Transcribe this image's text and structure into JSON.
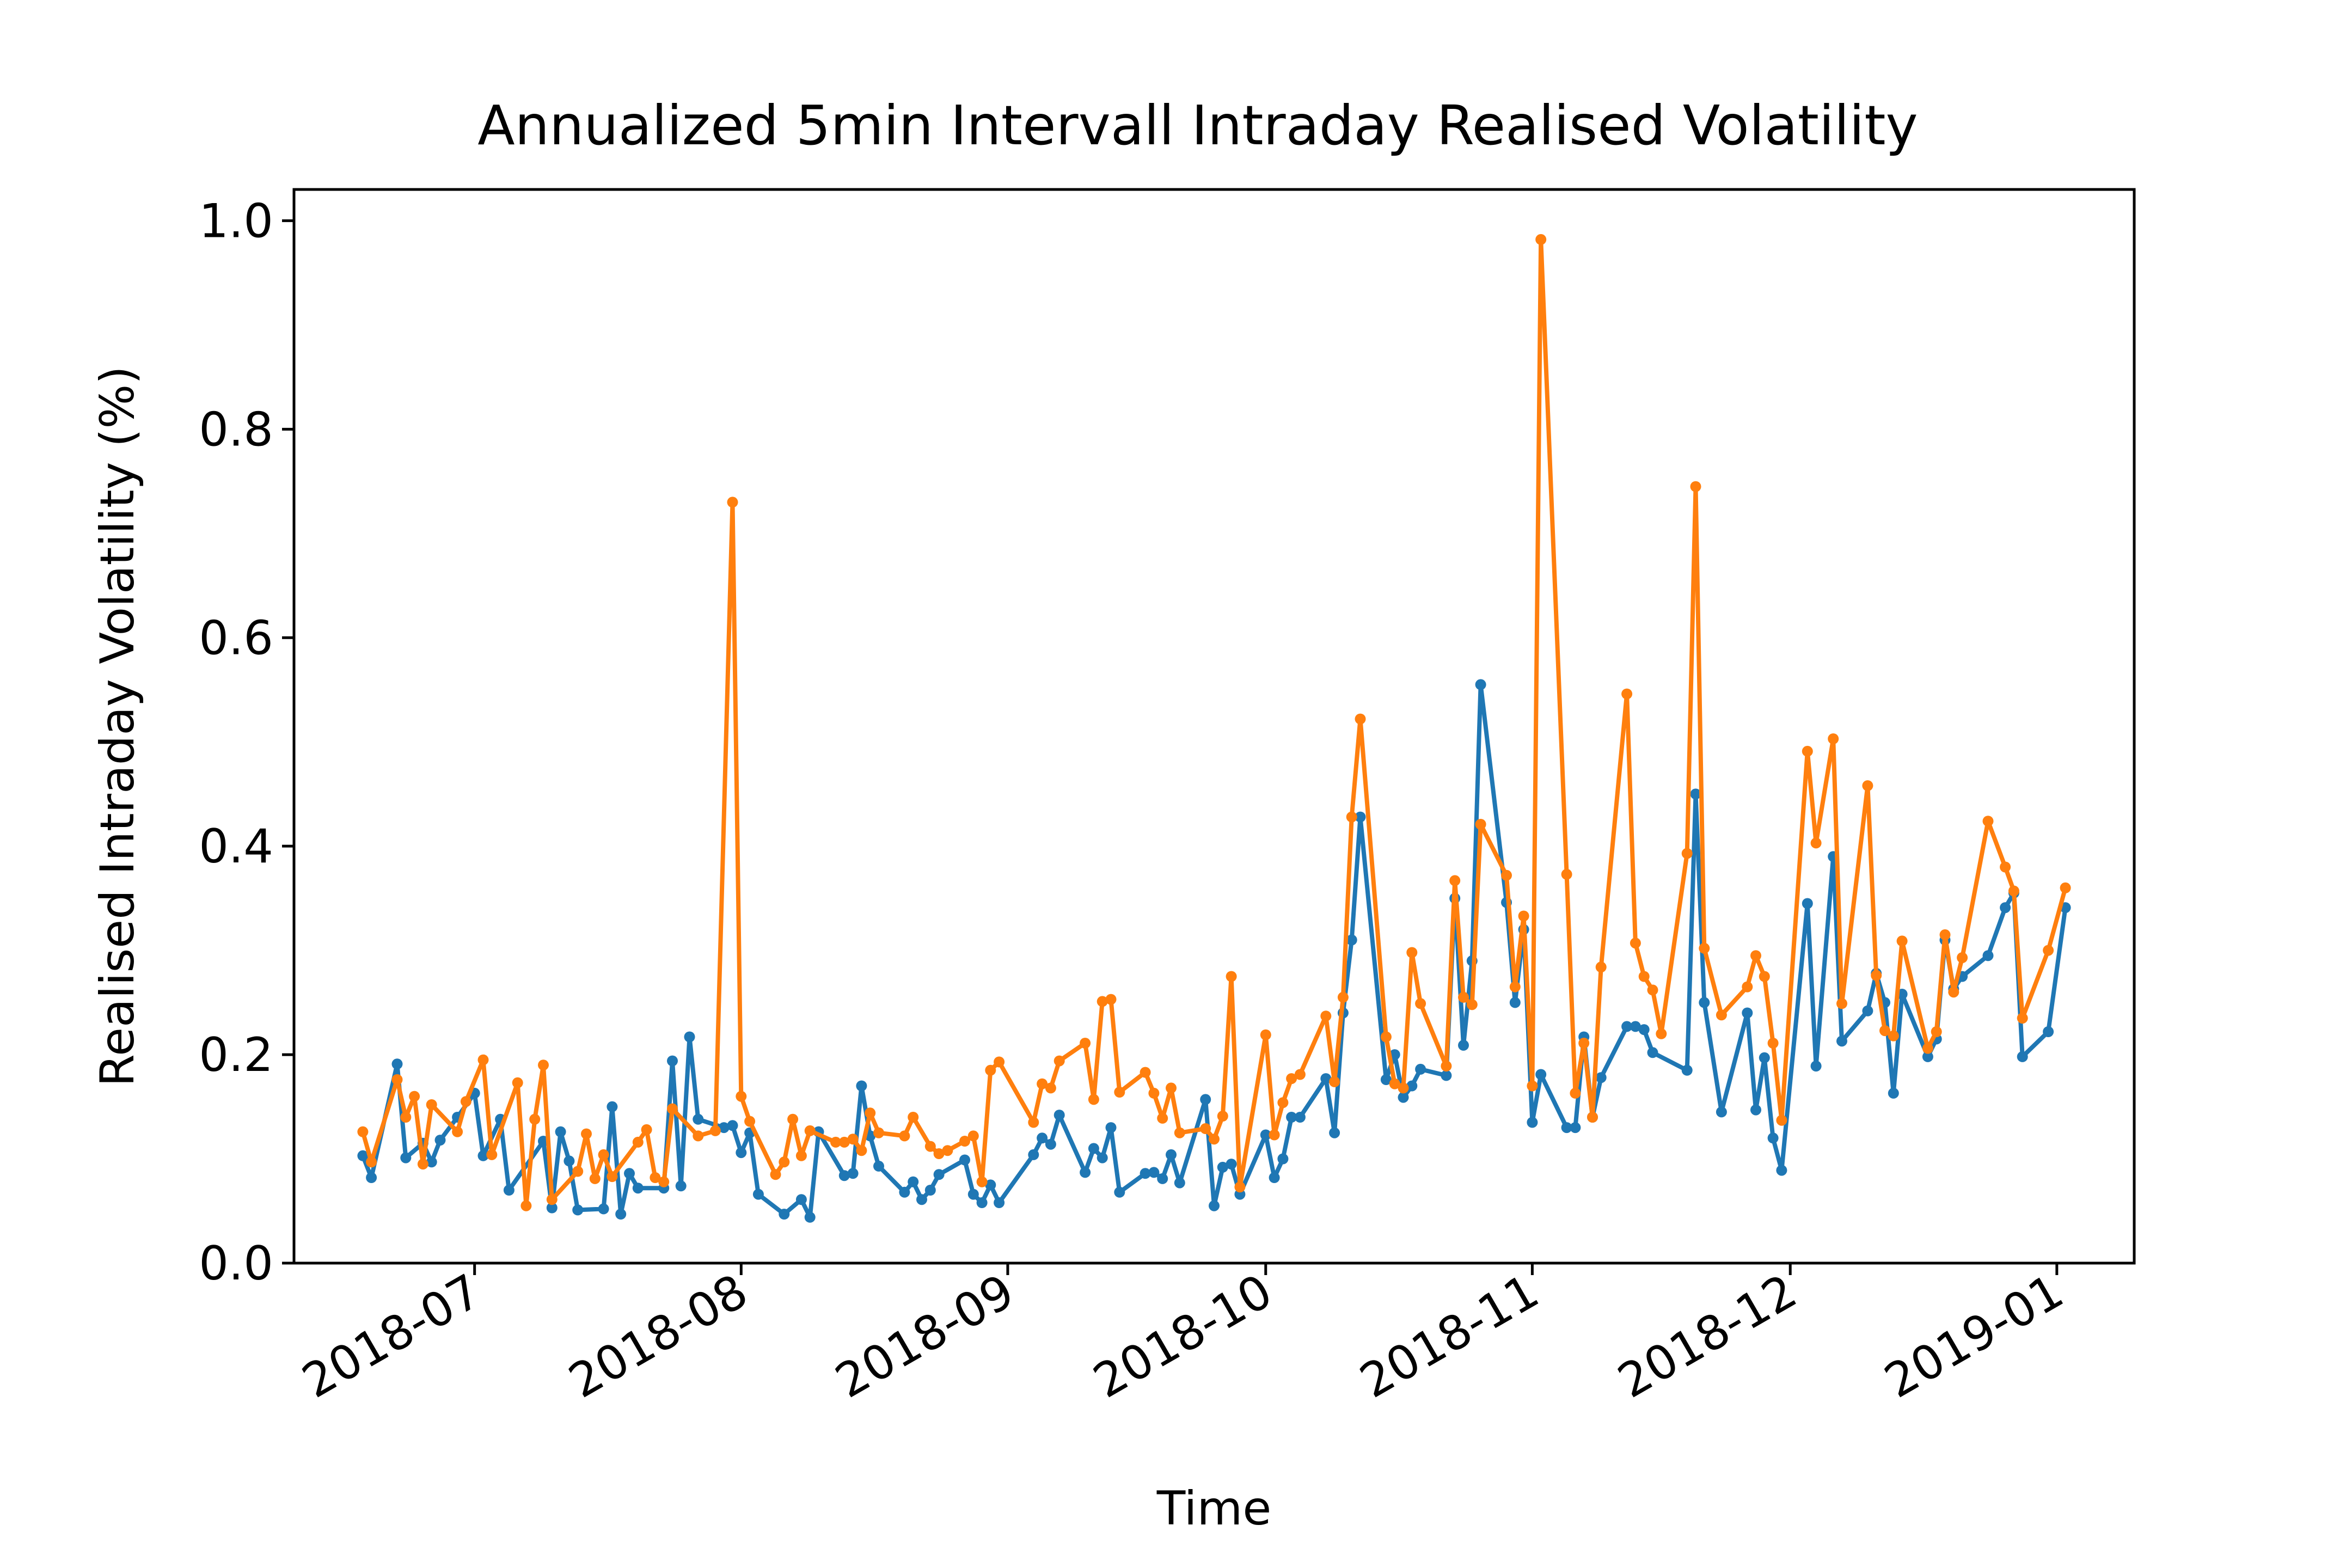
{
  "chart_data": {
    "type": "line",
    "title": "Annualized 5min Intervall Intraday Realised Volatility",
    "xlabel": "Time",
    "ylabel": "Realised Intraday Volatility (%)",
    "ylim": [
      0,
      1.03
    ],
    "xlim": [
      "2018-06-10",
      "2019-01-10"
    ],
    "y_ticks": [
      0.0,
      0.2,
      0.4,
      0.6,
      0.8,
      1.0
    ],
    "y_tick_labels": [
      "0.0",
      "0.2",
      "0.4",
      "0.6",
      "0.8",
      "1.0"
    ],
    "x_ticks": [
      "2018-07-01",
      "2018-08-01",
      "2018-09-01",
      "2018-10-01",
      "2018-11-01",
      "2018-12-01",
      "2019-01-01"
    ],
    "x_tick_labels": [
      "2018-07",
      "2018-08",
      "2018-09",
      "2018-10",
      "2018-11",
      "2018-12",
      "2019-01"
    ],
    "grid": false,
    "series": [
      {
        "color": "#1f77b4",
        "points": [
          [
            "2018-06-18",
            0.103
          ],
          [
            "2018-06-19",
            0.082
          ],
          [
            "2018-06-22",
            0.191
          ],
          [
            "2018-06-23",
            0.101
          ],
          [
            "2018-06-25",
            0.115
          ],
          [
            "2018-06-26",
            0.097
          ],
          [
            "2018-06-27",
            0.118
          ],
          [
            "2018-06-29",
            0.14
          ],
          [
            "2018-07-01",
            0.163
          ],
          [
            "2018-07-02",
            0.103
          ],
          [
            "2018-07-04",
            0.138
          ],
          [
            "2018-07-05",
            0.07
          ],
          [
            "2018-07-09",
            0.117
          ],
          [
            "2018-07-10",
            0.053
          ],
          [
            "2018-07-11",
            0.126
          ],
          [
            "2018-07-12",
            0.098
          ],
          [
            "2018-07-13",
            0.051
          ],
          [
            "2018-07-16",
            0.052
          ],
          [
            "2018-07-17",
            0.15
          ],
          [
            "2018-07-18",
            0.047
          ],
          [
            "2018-07-19",
            0.086
          ],
          [
            "2018-07-20",
            0.072
          ],
          [
            "2018-07-23",
            0.072
          ],
          [
            "2018-07-24",
            0.194
          ],
          [
            "2018-07-25",
            0.074
          ],
          [
            "2018-07-26",
            0.217
          ],
          [
            "2018-07-27",
            0.138
          ],
          [
            "2018-07-30",
            0.13
          ],
          [
            "2018-07-31",
            0.132
          ],
          [
            "2018-08-01",
            0.106
          ],
          [
            "2018-08-02",
            0.125
          ],
          [
            "2018-08-03",
            0.066
          ],
          [
            "2018-08-06",
            0.047
          ],
          [
            "2018-08-08",
            0.061
          ],
          [
            "2018-08-09",
            0.044
          ],
          [
            "2018-08-10",
            0.126
          ],
          [
            "2018-08-13",
            0.084
          ],
          [
            "2018-08-14",
            0.086
          ],
          [
            "2018-08-15",
            0.17
          ],
          [
            "2018-08-16",
            0.122
          ],
          [
            "2018-08-17",
            0.093
          ],
          [
            "2018-08-20",
            0.068
          ],
          [
            "2018-08-21",
            0.078
          ],
          [
            "2018-08-22",
            0.061
          ],
          [
            "2018-08-23",
            0.07
          ],
          [
            "2018-08-24",
            0.085
          ],
          [
            "2018-08-27",
            0.099
          ],
          [
            "2018-08-28",
            0.066
          ],
          [
            "2018-08-29",
            0.058
          ],
          [
            "2018-08-30",
            0.075
          ],
          [
            "2018-08-31",
            0.058
          ],
          [
            "2018-09-04",
            0.104
          ],
          [
            "2018-09-05",
            0.12
          ],
          [
            "2018-09-06",
            0.114
          ],
          [
            "2018-09-07",
            0.142
          ],
          [
            "2018-09-10",
            0.087
          ],
          [
            "2018-09-11",
            0.11
          ],
          [
            "2018-09-12",
            0.101
          ],
          [
            "2018-09-13",
            0.13
          ],
          [
            "2018-09-14",
            0.068
          ],
          [
            "2018-09-17",
            0.086
          ],
          [
            "2018-09-18",
            0.087
          ],
          [
            "2018-09-19",
            0.081
          ],
          [
            "2018-09-20",
            0.104
          ],
          [
            "2018-09-21",
            0.077
          ],
          [
            "2018-09-24",
            0.157
          ],
          [
            "2018-09-25",
            0.055
          ],
          [
            "2018-09-26",
            0.092
          ],
          [
            "2018-09-27",
            0.095
          ],
          [
            "2018-09-28",
            0.066
          ],
          [
            "2018-10-01",
            0.123
          ],
          [
            "2018-10-02",
            0.082
          ],
          [
            "2018-10-03",
            0.1
          ],
          [
            "2018-10-04",
            0.14
          ],
          [
            "2018-10-05",
            0.14
          ],
          [
            "2018-10-08",
            0.177
          ],
          [
            "2018-10-09",
            0.125
          ],
          [
            "2018-10-10",
            0.24
          ],
          [
            "2018-10-11",
            0.31
          ],
          [
            "2018-10-12",
            0.428
          ],
          [
            "2018-10-15",
            0.176
          ],
          [
            "2018-10-16",
            0.2
          ],
          [
            "2018-10-17",
            0.159
          ],
          [
            "2018-10-18",
            0.17
          ],
          [
            "2018-10-19",
            0.186
          ],
          [
            "2018-10-22",
            0.18
          ],
          [
            "2018-10-23",
            0.35
          ],
          [
            "2018-10-24",
            0.209
          ],
          [
            "2018-10-25",
            0.29
          ],
          [
            "2018-10-26",
            0.555
          ],
          [
            "2018-10-29",
            0.346
          ],
          [
            "2018-10-30",
            0.25
          ],
          [
            "2018-10-31",
            0.32
          ],
          [
            "2018-11-01",
            0.135
          ],
          [
            "2018-11-02",
            0.181
          ],
          [
            "2018-11-05",
            0.13
          ],
          [
            "2018-11-06",
            0.13
          ],
          [
            "2018-11-07",
            0.217
          ],
          [
            "2018-11-08",
            0.14
          ],
          [
            "2018-11-09",
            0.178
          ],
          [
            "2018-11-12",
            0.227
          ],
          [
            "2018-11-13",
            0.227
          ],
          [
            "2018-11-14",
            0.224
          ],
          [
            "2018-11-15",
            0.202
          ],
          [
            "2018-11-19",
            0.185
          ],
          [
            "2018-11-20",
            0.45
          ],
          [
            "2018-11-21",
            0.25
          ],
          [
            "2018-11-23",
            0.145
          ],
          [
            "2018-11-26",
            0.24
          ],
          [
            "2018-11-27",
            0.147
          ],
          [
            "2018-11-28",
            0.197
          ],
          [
            "2018-11-29",
            0.12
          ],
          [
            "2018-11-30",
            0.089
          ],
          [
            "2018-12-03",
            0.345
          ],
          [
            "2018-12-04",
            0.189
          ],
          [
            "2018-12-06",
            0.39
          ],
          [
            "2018-12-07",
            0.213
          ],
          [
            "2018-12-10",
            0.242
          ],
          [
            "2018-12-11",
            0.278
          ],
          [
            "2018-12-12",
            0.25
          ],
          [
            "2018-12-13",
            0.163
          ],
          [
            "2018-12-14",
            0.258
          ],
          [
            "2018-12-17",
            0.198
          ],
          [
            "2018-12-18",
            0.215
          ],
          [
            "2018-12-19",
            0.31
          ],
          [
            "2018-12-20",
            0.263
          ],
          [
            "2018-12-21",
            0.275
          ],
          [
            "2018-12-24",
            0.295
          ],
          [
            "2018-12-26",
            0.341
          ],
          [
            "2018-12-27",
            0.355
          ],
          [
            "2018-12-28",
            0.198
          ],
          [
            "2018-12-31",
            0.222
          ],
          [
            "2019-01-02",
            0.341
          ]
        ]
      },
      {
        "color": "#ff7f0e",
        "points": [
          [
            "2018-06-18",
            0.126
          ],
          [
            "2018-06-19",
            0.097
          ],
          [
            "2018-06-22",
            0.176
          ],
          [
            "2018-06-23",
            0.14
          ],
          [
            "2018-06-24",
            0.16
          ],
          [
            "2018-06-25",
            0.095
          ],
          [
            "2018-06-26",
            0.152
          ],
          [
            "2018-06-29",
            0.126
          ],
          [
            "2018-06-30",
            0.155
          ],
          [
            "2018-07-02",
            0.195
          ],
          [
            "2018-07-03",
            0.104
          ],
          [
            "2018-07-06",
            0.173
          ],
          [
            "2018-07-07",
            0.055
          ],
          [
            "2018-07-08",
            0.138
          ],
          [
            "2018-07-09",
            0.19
          ],
          [
            "2018-07-10",
            0.061
          ],
          [
            "2018-07-13",
            0.088
          ],
          [
            "2018-07-14",
            0.124
          ],
          [
            "2018-07-15",
            0.081
          ],
          [
            "2018-07-16",
            0.104
          ],
          [
            "2018-07-17",
            0.083
          ],
          [
            "2018-07-20",
            0.116
          ],
          [
            "2018-07-21",
            0.128
          ],
          [
            "2018-07-22",
            0.082
          ],
          [
            "2018-07-23",
            0.078
          ],
          [
            "2018-07-24",
            0.148
          ],
          [
            "2018-07-27",
            0.122
          ],
          [
            "2018-07-29",
            0.127
          ],
          [
            "2018-07-31",
            0.73
          ],
          [
            "2018-08-01",
            0.16
          ],
          [
            "2018-08-02",
            0.136
          ],
          [
            "2018-08-05",
            0.085
          ],
          [
            "2018-08-06",
            0.097
          ],
          [
            "2018-08-07",
            0.138
          ],
          [
            "2018-08-08",
            0.103
          ],
          [
            "2018-08-09",
            0.127
          ],
          [
            "2018-08-12",
            0.116
          ],
          [
            "2018-08-13",
            0.116
          ],
          [
            "2018-08-14",
            0.119
          ],
          [
            "2018-08-15",
            0.108
          ],
          [
            "2018-08-16",
            0.144
          ],
          [
            "2018-08-17",
            0.125
          ],
          [
            "2018-08-20",
            0.122
          ],
          [
            "2018-08-21",
            0.14
          ],
          [
            "2018-08-23",
            0.112
          ],
          [
            "2018-08-24",
            0.105
          ],
          [
            "2018-08-25",
            0.108
          ],
          [
            "2018-08-27",
            0.117
          ],
          [
            "2018-08-28",
            0.122
          ],
          [
            "2018-08-29",
            0.078
          ],
          [
            "2018-08-30",
            0.185
          ],
          [
            "2018-08-31",
            0.193
          ],
          [
            "2018-09-04",
            0.135
          ],
          [
            "2018-09-05",
            0.172
          ],
          [
            "2018-09-06",
            0.168
          ],
          [
            "2018-09-07",
            0.194
          ],
          [
            "2018-09-10",
            0.211
          ],
          [
            "2018-09-11",
            0.157
          ],
          [
            "2018-09-12",
            0.251
          ],
          [
            "2018-09-13",
            0.253
          ],
          [
            "2018-09-14",
            0.164
          ],
          [
            "2018-09-17",
            0.183
          ],
          [
            "2018-09-18",
            0.163
          ],
          [
            "2018-09-19",
            0.139
          ],
          [
            "2018-09-20",
            0.168
          ],
          [
            "2018-09-21",
            0.125
          ],
          [
            "2018-09-24",
            0.129
          ],
          [
            "2018-09-25",
            0.119
          ],
          [
            "2018-09-26",
            0.141
          ],
          [
            "2018-09-27",
            0.275
          ],
          [
            "2018-09-28",
            0.073
          ],
          [
            "2018-10-01",
            0.219
          ],
          [
            "2018-10-02",
            0.123
          ],
          [
            "2018-10-03",
            0.154
          ],
          [
            "2018-10-04",
            0.177
          ],
          [
            "2018-10-05",
            0.181
          ],
          [
            "2018-10-08",
            0.237
          ],
          [
            "2018-10-09",
            0.174
          ],
          [
            "2018-10-10",
            0.255
          ],
          [
            "2018-10-11",
            0.428
          ],
          [
            "2018-10-12",
            0.522
          ],
          [
            "2018-10-15",
            0.217
          ],
          [
            "2018-10-16",
            0.172
          ],
          [
            "2018-10-17",
            0.168
          ],
          [
            "2018-10-18",
            0.298
          ],
          [
            "2018-10-19",
            0.249
          ],
          [
            "2018-10-22",
            0.189
          ],
          [
            "2018-10-23",
            0.367
          ],
          [
            "2018-10-24",
            0.255
          ],
          [
            "2018-10-25",
            0.248
          ],
          [
            "2018-10-26",
            0.421
          ],
          [
            "2018-10-29",
            0.372
          ],
          [
            "2018-10-30",
            0.265
          ],
          [
            "2018-10-31",
            0.333
          ],
          [
            "2018-11-01",
            0.17
          ],
          [
            "2018-11-02",
            0.982
          ],
          [
            "2018-11-05",
            0.373
          ],
          [
            "2018-11-06",
            0.163
          ],
          [
            "2018-11-07",
            0.211
          ],
          [
            "2018-11-08",
            0.14
          ],
          [
            "2018-11-09",
            0.284
          ],
          [
            "2018-11-12",
            0.546
          ],
          [
            "2018-11-13",
            0.307
          ],
          [
            "2018-11-14",
            0.275
          ],
          [
            "2018-11-15",
            0.262
          ],
          [
            "2018-11-16",
            0.22
          ],
          [
            "2018-11-19",
            0.393
          ],
          [
            "2018-11-20",
            0.745
          ],
          [
            "2018-11-21",
            0.302
          ],
          [
            "2018-11-23",
            0.238
          ],
          [
            "2018-11-26",
            0.265
          ],
          [
            "2018-11-27",
            0.295
          ],
          [
            "2018-11-28",
            0.275
          ],
          [
            "2018-11-29",
            0.211
          ],
          [
            "2018-11-30",
            0.137
          ],
          [
            "2018-12-03",
            0.491
          ],
          [
            "2018-12-04",
            0.403
          ],
          [
            "2018-12-06",
            0.503
          ],
          [
            "2018-12-07",
            0.249
          ],
          [
            "2018-12-10",
            0.458
          ],
          [
            "2018-12-11",
            0.276
          ],
          [
            "2018-12-12",
            0.223
          ],
          [
            "2018-12-13",
            0.218
          ],
          [
            "2018-12-14",
            0.309
          ],
          [
            "2018-12-17",
            0.206
          ],
          [
            "2018-12-18",
            0.222
          ],
          [
            "2018-12-19",
            0.315
          ],
          [
            "2018-12-20",
            0.26
          ],
          [
            "2018-12-21",
            0.293
          ],
          [
            "2018-12-24",
            0.424
          ],
          [
            "2018-12-26",
            0.38
          ],
          [
            "2018-12-27",
            0.357
          ],
          [
            "2018-12-28",
            0.235
          ],
          [
            "2018-12-31",
            0.3
          ],
          [
            "2019-01-02",
            0.36
          ]
        ]
      }
    ]
  }
}
